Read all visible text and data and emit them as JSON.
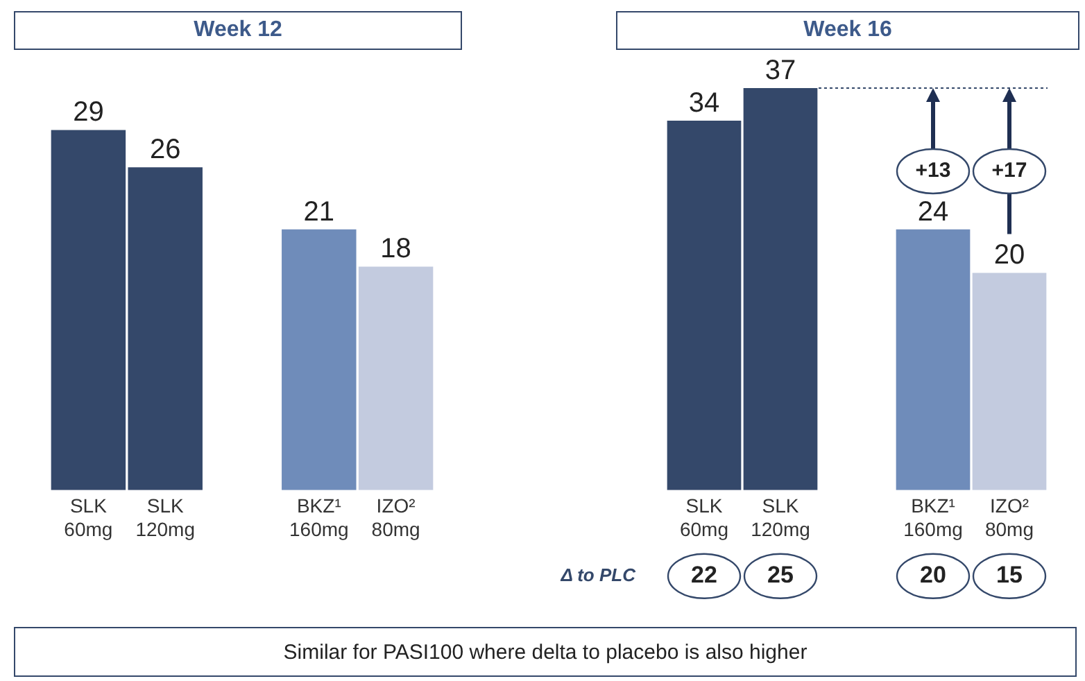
{
  "chart_data": [
    {
      "type": "bar",
      "title": "Week 12",
      "categories": [
        "SLK\n60mg",
        "SLK\n120mg",
        null,
        "BKZ¹\n160mg",
        "IZO²\n80mg"
      ],
      "values": [
        29,
        26,
        null,
        21,
        18
      ],
      "colors": [
        "#34486a",
        "#34486a",
        "#34486a",
        "#6f8cba",
        "#c3cbdf"
      ],
      "data_labels": true,
      "relative": false
    },
    {
      "type": "bar",
      "title": "Week 16",
      "categories": [
        "SLK\n60mg",
        "SLK\n120mg",
        null,
        "BKZ¹\n160mg",
        "IZO²\n80mg"
      ],
      "values": [
        34,
        37,
        null,
        24,
        20
      ],
      "colors": [
        "#34486a",
        "#34486a",
        "#34486a",
        "#6f8cba",
        "#c3cbdf"
      ],
      "data_labels": true,
      "ref_lines": [
        {
          "axis": "y",
          "value": 37,
          "color": "#34486a",
          "line_style": "dotted"
        }
      ],
      "annotations": [
        "Δ to PLC",
        "22",
        "25",
        "20",
        "15",
        "+13",
        "+17",
        "Similar for PASI100 where delta to placebo is also higher"
      ]
    }
  ]
}
